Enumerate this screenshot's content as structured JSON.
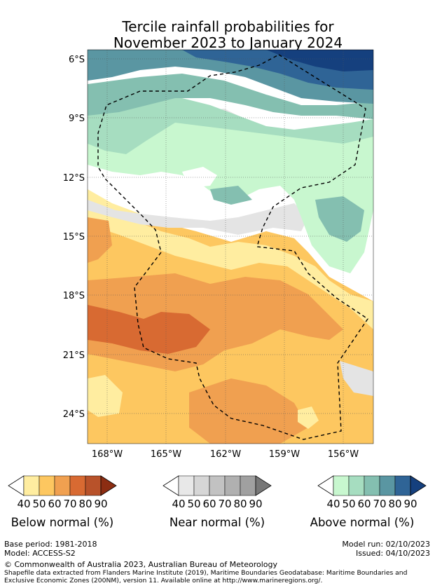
{
  "title": {
    "line1": "Tercile rainfall probabilities for",
    "line2": "November 2023 to January 2024"
  },
  "map": {
    "lat_labels": [
      "6°S",
      "9°S",
      "12°S",
      "15°S",
      "18°S",
      "21°S",
      "24°S"
    ],
    "lon_labels": [
      "168°W",
      "165°W",
      "162°W",
      "159°W",
      "156°W"
    ]
  },
  "legends": [
    {
      "caption": "Below normal (%)",
      "ticks": [
        "40",
        "50",
        "60",
        "70",
        "80",
        "90"
      ],
      "colors": [
        "#ffffff",
        "#ffeda0",
        "#fdc760",
        "#f0a050",
        "#d86a32",
        "#b8522a",
        "#8c2d12"
      ]
    },
    {
      "caption": "Near normal (%)",
      "ticks": [
        "40",
        "50",
        "60",
        "70",
        "80",
        "90"
      ],
      "colors": [
        "#ffffff",
        "#e8e8e8",
        "#d6d6d6",
        "#c2c2c2",
        "#b0b0b0",
        "#a0a0a0",
        "#777777"
      ]
    },
    {
      "caption": "Above normal (%)",
      "ticks": [
        "40",
        "50",
        "60",
        "70",
        "80",
        "90"
      ],
      "colors": [
        "#ffffff",
        "#c8f7cf",
        "#a6ddc0",
        "#84bfb0",
        "#5a96a2",
        "#2f6496",
        "#15407e"
      ]
    }
  ],
  "footer": {
    "base_period": "Base period: 1981-2018",
    "model": "Model: ACCESS-S2",
    "model_run": "Model run: 02/10/2023",
    "issued": "Issued: 04/10/2023",
    "copyright": "© Commonwealth of Australia 2023, Australian Bureau of Meteorology",
    "shapefile_line1": "Shapefile data extracted from Flanders Marine Institute (2019), Maritime Boundaries Geodatabase: Maritime Boundaries and",
    "shapefile_line2": "Exclusive Economic Zones (200NM), version 11. Available online at http://www.marineregions.org/."
  }
}
